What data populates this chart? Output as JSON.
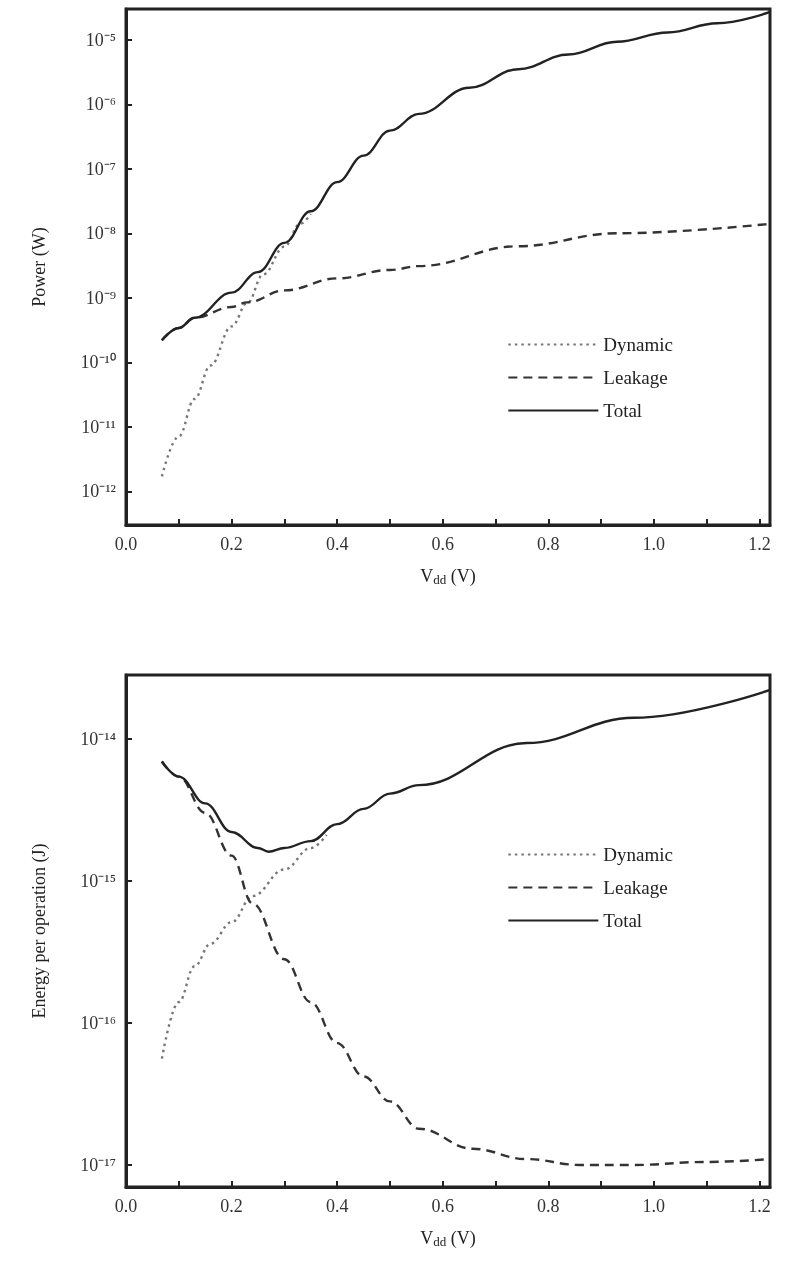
{
  "chart_data": [
    {
      "type": "line",
      "xlabel": "V$_{dd}$ (V)",
      "ylabel": "Power (W)",
      "log": "y",
      "grid": false,
      "legend": "right",
      "marker": "none",
      "xlim": [
        0,
        1.22
      ],
      "xticks": [
        {
          "value": 0,
          "label": "0.0"
        },
        {
          "value": 0.1,
          "label": null
        },
        0.2,
        {
          "value": 0.3,
          "label": null
        },
        0.4,
        {
          "value": 0.5,
          "label": null
        },
        0.6,
        {
          "value": 0.7,
          "label": null
        },
        0.8,
        {
          "value": 0.9,
          "label": null
        },
        {
          "value": 1,
          "label": "1.0"
        },
        {
          "value": 1.1,
          "label": null
        },
        1.2
      ],
      "ylim": [
        3e-13,
        3e-05
      ],
      "yticks": [
        {
          "value": 1e-12,
          "label": "10⁻¹²"
        },
        {
          "value": 1e-11,
          "label": "10⁻¹¹"
        },
        {
          "value": 1e-10,
          "label": "10⁻¹⁰"
        },
        {
          "value": 1e-09,
          "label": "10⁻⁹"
        },
        {
          "value": 1e-08,
          "label": "10⁻⁸"
        },
        {
          "value": 1e-07,
          "label": "10⁻⁷"
        },
        {
          "value": 1e-06,
          "label": "10⁻⁶"
        },
        {
          "value": 1e-05,
          "label": "10⁻⁵"
        }
      ],
      "series": [
        {
          "name": "Dynamic",
          "color": "#777777",
          "line_style": "dotted",
          "x": [
            0.068,
            0.1,
            0.13,
            0.16,
            0.2,
            0.23,
            0.26,
            0.3,
            0.33,
            0.35
          ],
          "values": [
            1.7e-12,
            7.1e-12,
            2.7e-11,
            8.9e-11,
            3.6e-10,
            8.3e-10,
            2.3e-09,
            6.2e-09,
            1.4e-08,
            2e-08
          ]
        },
        {
          "name": "Leakage",
          "color": "#333333",
          "line_style": "dashed",
          "x": [
            0.068,
            0.1,
            0.13,
            0.2,
            0.23,
            0.3,
            0.4,
            0.5,
            0.555,
            0.743,
            0.93,
            1.22
          ],
          "values": [
            2.2e-10,
            3.4e-10,
            4.9e-10,
            7.2e-10,
            8.5e-10,
            1.3e-09,
            2e-09,
            2.7e-09,
            3.1e-09,
            6.3e-09,
            1e-08,
            1.4e-08
          ]
        },
        {
          "name": "Total",
          "color": "#222222",
          "line_style": "solid",
          "x": [
            0.068,
            0.1,
            0.13,
            0.2,
            0.25,
            0.3,
            0.35,
            0.4,
            0.45,
            0.5,
            0.555,
            0.65,
            0.743,
            0.838,
            0.93,
            1.026,
            1.12,
            1.22
          ],
          "values": [
            2.2e-10,
            3.4e-10,
            4.9e-10,
            1.2e-09,
            2.5e-09,
            7.1e-09,
            2.2e-08,
            6.2e-08,
            1.6e-07,
            3.9e-07,
            7.1e-07,
            1.8e-06,
            3.5e-06,
            5.9e-06,
            9.3e-06,
            1.3e-05,
            1.8e-05,
            2.7e-05
          ]
        }
      ]
    },
    {
      "type": "line",
      "xlabel": "V$_{dd}$ (V)",
      "ylabel": "Energy per operation (J)",
      "log": "y",
      "grid": false,
      "legend": "right",
      "marker": "none",
      "xlim": [
        0,
        1.22
      ],
      "xticks": [
        {
          "value": 0,
          "label": "0.0"
        },
        {
          "value": 0.1,
          "label": null
        },
        0.2,
        {
          "value": 0.3,
          "label": null
        },
        0.4,
        {
          "value": 0.5,
          "label": null
        },
        0.6,
        {
          "value": 0.7,
          "label": null
        },
        0.8,
        {
          "value": 0.9,
          "label": null
        },
        {
          "value": 1,
          "label": "1.0"
        },
        {
          "value": 1.1,
          "label": null
        },
        1.2
      ],
      "ylim": [
        7e-18,
        2.8e-14
      ],
      "yticks": [
        {
          "value": 1e-17,
          "label": "10⁻¹⁷"
        },
        {
          "value": 1e-16,
          "label": "10⁻¹⁶"
        },
        {
          "value": 1e-15,
          "label": "10⁻¹⁵"
        },
        {
          "value": 1e-14,
          "label": "10⁻¹⁴"
        }
      ],
      "series": [
        {
          "name": "Dynamic",
          "color": "#777777",
          "line_style": "dotted",
          "x": [
            0.068,
            0.1,
            0.13,
            0.16,
            0.2,
            0.24,
            0.3,
            0.35,
            0.38
          ],
          "values": [
            5.6e-17,
            1.4e-16,
            2.5e-16,
            3.6e-16,
            5.1e-16,
            7.8e-16,
            1.2e-15,
            1.7e-15,
            2.1e-15
          ]
        },
        {
          "name": "Leakage",
          "color": "#333333",
          "line_style": "dashed",
          "x": [
            0.068,
            0.1,
            0.15,
            0.2,
            0.24,
            0.3,
            0.35,
            0.4,
            0.45,
            0.5,
            0.555,
            0.657,
            0.759,
            0.86,
            0.962,
            1.097,
            1.22
          ],
          "values": [
            6.9e-15,
            5.4e-15,
            3e-15,
            1.5e-15,
            6.9e-16,
            2.8e-16,
            1.4e-16,
            7.2e-17,
            4.2e-17,
            2.8e-17,
            1.8e-17,
            1.3e-17,
            1.1e-17,
            1e-17,
            1e-17,
            1.05e-17,
            1.1e-17
          ]
        },
        {
          "name": "Total",
          "color": "#222222",
          "line_style": "solid",
          "x": [
            0.068,
            0.1,
            0.15,
            0.2,
            0.25,
            0.27,
            0.3,
            0.35,
            0.4,
            0.45,
            0.5,
            0.555,
            0.759,
            0.962,
            1.22
          ],
          "values": [
            6.9e-15,
            5.4e-15,
            3.5e-15,
            2.2e-15,
            1.7e-15,
            1.6e-15,
            1.7e-15,
            1.9e-15,
            2.5e-15,
            3.2e-15,
            4.1e-15,
            4.7e-15,
            9.3e-15,
            1.4e-14,
            2.2e-14
          ]
        }
      ]
    }
  ]
}
